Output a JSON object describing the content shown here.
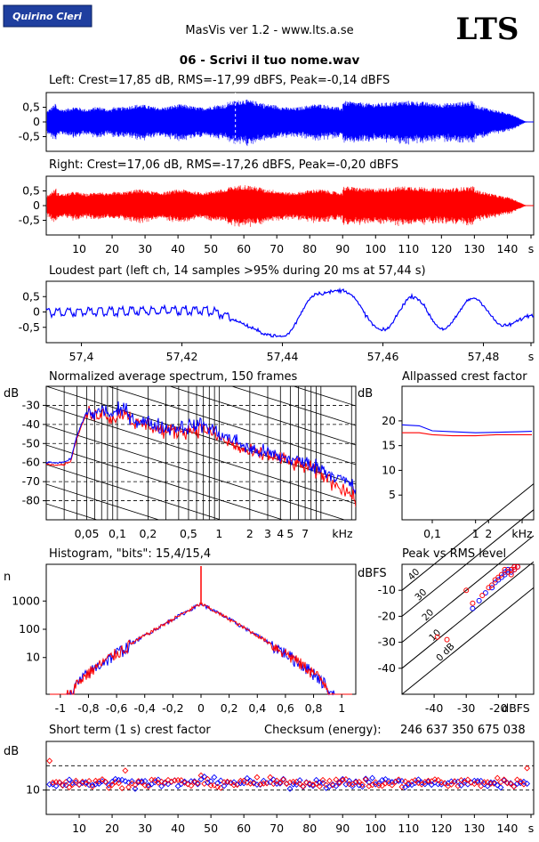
{
  "header": {
    "badge": "Quirino Cleri",
    "app_title": "MasVis ver 1.2 - www.lts.a.se",
    "brand": "LTS",
    "file_title": "06 - Scrivi il tuo nome.wav"
  },
  "colors": {
    "left": "#0000ff",
    "right": "#ff0000",
    "badge_bg": "#1f3f9f",
    "badge_text": "#ffffff"
  },
  "chart_data": [
    {
      "type": "line",
      "id": "left-waveform",
      "title": "Left: Crest=17,85 dB, RMS=-17,99 dBFS, Peak=-0,14 dBFS",
      "ylim": [
        -1,
        1
      ],
      "yticks": [
        "0,5",
        "0",
        "-0,5"
      ],
      "xlim": [
        0,
        148
      ],
      "duration_s": 146,
      "marker_s": 57.44
    },
    {
      "type": "line",
      "id": "right-waveform",
      "title": "Right: Crest=17,06 dB, RMS=-17,26 dBFS, Peak=-0,20 dBFS",
      "ylim": [
        -1,
        1
      ],
      "yticks": [
        "0,5",
        "0",
        "-0,5"
      ],
      "xlim": [
        0,
        148
      ],
      "xticks": [
        "10",
        "20",
        "30",
        "40",
        "50",
        "60",
        "70",
        "80",
        "90",
        "100",
        "110",
        "120",
        "130",
        "140",
        "s"
      ]
    },
    {
      "type": "line",
      "id": "loudest-part",
      "title": "Loudest part (left  ch, 14 samples >95% during 20 ms at 57,44 s)",
      "ylim": [
        -1,
        1
      ],
      "yticks": [
        "0,5",
        "0",
        "-0,5"
      ],
      "xlim": [
        57.393,
        57.49
      ],
      "xticks": [
        "57,4",
        "57,42",
        "57,44",
        "57,46",
        "57,48",
        "s"
      ],
      "wave_periods": [
        [
          57.393,
          0.0
        ],
        [
          57.424,
          0.05
        ],
        [
          57.44,
          -0.8
        ],
        [
          57.447,
          0.6
        ],
        [
          57.452,
          0.7
        ],
        [
          57.46,
          -0.6
        ],
        [
          57.466,
          0.5
        ],
        [
          57.472,
          -0.55
        ],
        [
          57.478,
          0.45
        ],
        [
          57.484,
          -0.45
        ],
        [
          57.49,
          -0.1
        ]
      ]
    },
    {
      "type": "line",
      "id": "average-spectrum",
      "title": "Normalized average spectrum, 150 frames",
      "ylabel": "dB",
      "ylim": [
        -90,
        -20
      ],
      "yticks": [
        "-30",
        "-40",
        "-50",
        "-60",
        "-70",
        "-80"
      ],
      "xscale": "log",
      "xlim_khz": [
        0.02,
        22
      ],
      "xticks": [
        "0,05",
        "0,1",
        "0,2",
        "0,5",
        "1",
        "2",
        "3",
        "4",
        "5",
        "7",
        "kHz"
      ],
      "series": [
        {
          "freq_khz": [
            0.02,
            0.03,
            0.035,
            0.04,
            0.05,
            0.06,
            0.07,
            0.09,
            0.12,
            0.15,
            0.2,
            0.3,
            0.5,
            0.7,
            1,
            1.5,
            2,
            3,
            4,
            5,
            7,
            10,
            15,
            20,
            22
          ],
          "db": [
            -61,
            -61,
            -59,
            -47,
            -34,
            -36,
            -33,
            -37,
            -33,
            -40,
            -40,
            -44,
            -43,
            -42,
            -47,
            -52,
            -55,
            -56,
            -58,
            -60,
            -62,
            -66,
            -72,
            -77,
            -80
          ]
        },
        {
          "freq_khz": [
            0.02,
            0.03,
            0.035,
            0.04,
            0.05,
            0.06,
            0.07,
            0.09,
            0.12,
            0.15,
            0.2,
            0.3,
            0.5,
            0.7,
            1,
            1.5,
            2,
            3,
            4,
            5,
            7,
            10,
            15,
            20,
            22
          ],
          "db": [
            -60,
            -60,
            -58,
            -46,
            -33,
            -35,
            -32,
            -35,
            -32,
            -38,
            -39,
            -42,
            -41,
            -40,
            -45,
            -49,
            -53,
            -55,
            -57,
            -58,
            -60,
            -63,
            -68,
            -72,
            -75
          ]
        }
      ]
    },
    {
      "type": "line",
      "id": "allpassed-crest",
      "title": "Allpassed crest factor",
      "ylabel": "dB",
      "ylim": [
        0,
        27
      ],
      "yticks": [
        "20",
        "15",
        "10",
        "5"
      ],
      "xscale": "log",
      "xticks": [
        "0,1",
        "1",
        "2",
        "kHz"
      ],
      "series": [
        {
          "freq_khz": [
            0.02,
            0.05,
            0.1,
            0.3,
            1,
            3,
            10,
            20
          ],
          "db": [
            19.2,
            19.0,
            18.0,
            17.8,
            17.6,
            17.7,
            17.8,
            17.9
          ]
        },
        {
          "freq_khz": [
            0.02,
            0.05,
            0.1,
            0.3,
            1,
            3,
            10,
            20
          ],
          "db": [
            17.6,
            17.6,
            17.2,
            17.0,
            17.0,
            17.2,
            17.2,
            17.2
          ]
        }
      ]
    },
    {
      "type": "line",
      "id": "histogram",
      "title": "Histogram, \"bits\": 15,4/15,4",
      "ylabel": "n",
      "yscale": "log",
      "yticks": [
        "1000",
        "100",
        "10"
      ],
      "xlim": [
        -1.1,
        1.1
      ],
      "xticks": [
        "-1",
        "-0,8",
        "-0,6",
        "-0,4",
        "-0,2",
        "0",
        "0,2",
        "0,4",
        "0,6",
        "0,8",
        "1"
      ],
      "center_peak": 800,
      "tail": [
        [
          0.0,
          800
        ],
        [
          0.2,
          230
        ],
        [
          0.4,
          60
        ],
        [
          0.6,
          15
        ],
        [
          0.8,
          3
        ],
        [
          0.9,
          1
        ]
      ]
    },
    {
      "type": "scatter",
      "id": "peak-vs-rms",
      "title": "Peak vs RMS level",
      "ylabel": "dBFS",
      "xlabel": "dBFS",
      "xlim": [
        -50,
        -9
      ],
      "ylim": [
        -50,
        0
      ],
      "yticks": [
        "-10",
        "-20",
        "-30",
        "-40"
      ],
      "xticks": [
        "-40",
        "-30",
        "-20",
        "dBFS"
      ],
      "diagonal_labels": [
        "40",
        "30",
        "20",
        "10",
        "0 dB"
      ],
      "points_left": [
        [
          -16,
          -2
        ],
        [
          -17,
          -3
        ],
        [
          -15,
          -1
        ],
        [
          -18,
          -4
        ],
        [
          -16,
          -3
        ],
        [
          -17,
          -2
        ],
        [
          -19,
          -5
        ],
        [
          -20,
          -6
        ],
        [
          -21,
          -7
        ],
        [
          -22,
          -9
        ],
        [
          -24,
          -11
        ],
        [
          -26,
          -14
        ],
        [
          -28,
          -17
        ],
        [
          -14,
          -1
        ],
        [
          -15,
          -2
        ],
        [
          -18,
          -3
        ]
      ],
      "points_right": [
        [
          -15,
          -1
        ],
        [
          -16,
          -2
        ],
        [
          -17,
          -3
        ],
        [
          -18,
          -2
        ],
        [
          -19,
          -4
        ],
        [
          -20,
          -5
        ],
        [
          -21,
          -6
        ],
        [
          -22,
          -8
        ],
        [
          -23,
          -9
        ],
        [
          -25,
          -12
        ],
        [
          -28,
          -15
        ],
        [
          -30,
          -10
        ],
        [
          -36,
          -29
        ],
        [
          -39,
          -28
        ],
        [
          -15,
          -2
        ],
        [
          -14,
          -1
        ],
        [
          -16,
          -4
        ]
      ]
    },
    {
      "type": "scatter",
      "id": "short-term-crest",
      "title": "Short term (1 s) crest factor",
      "ylabel": "dB",
      "ylim": [
        0,
        30
      ],
      "yticks": [
        "10"
      ],
      "xlim": [
        0,
        148
      ],
      "xticks": [
        "10",
        "20",
        "30",
        "40",
        "50",
        "60",
        "70",
        "80",
        "90",
        "100",
        "110",
        "120",
        "130",
        "140",
        "s"
      ],
      "dashed_lines_db": [
        10,
        20
      ],
      "baseline_db": 13,
      "outliers": [
        [
          1,
          22
        ],
        [
          24,
          18
        ],
        [
          47,
          16
        ],
        [
          146,
          19
        ]
      ]
    }
  ],
  "checksum": {
    "label": "Checksum (energy):",
    "value": "246 637 350 675 038"
  }
}
